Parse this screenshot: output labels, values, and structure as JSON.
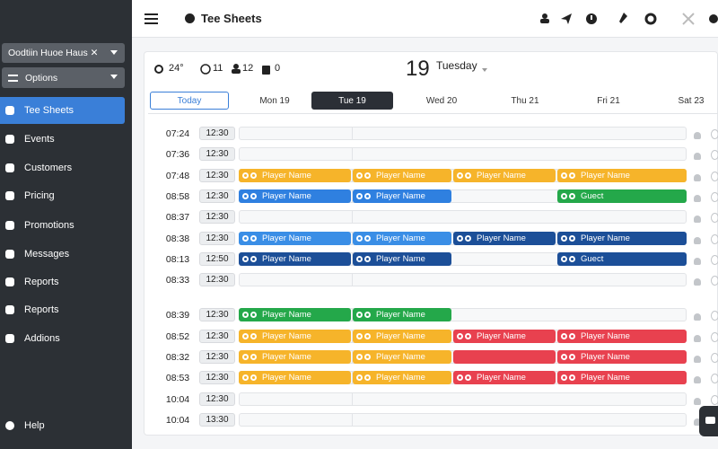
{
  "topbar": {
    "title": "Tee Sheets"
  },
  "sidebar": {
    "course": "Oodtiin Huoe Haus ✕",
    "options": "Options",
    "nav": [
      "Tee Sheets",
      "Events",
      "Customers",
      "Pricing",
      "Promotions",
      "Messages",
      "Reports",
      "Reports",
      "Addions"
    ],
    "active": 0,
    "help": "Help"
  },
  "header": {
    "temperature": "24°",
    "stat_a": 11,
    "stat_b": 12,
    "stat_c": 0,
    "day_number": 19,
    "weekday": "Tuesday"
  },
  "tabs": {
    "items": [
      "Today",
      "Mon 19",
      "Tue 19",
      "Wed 20",
      "Thu 21",
      "Fri 21",
      "Sat 23"
    ],
    "selected": 2
  },
  "rows": [
    {
      "time": "07:24",
      "tee": "12:30",
      "slots": [
        null,
        null,
        null,
        null
      ]
    },
    {
      "time": "07:36",
      "tee": "12:30",
      "slots": [
        null,
        null,
        null,
        null
      ]
    },
    {
      "time": "07:48",
      "tee": "12:30",
      "slots": [
        {
          "label": "Player Name",
          "color": "#f6b42a"
        },
        {
          "label": "Player Name",
          "color": "#f6b42a"
        },
        {
          "label": "Player Name",
          "color": "#f6b42a"
        },
        {
          "label": "Player Name",
          "color": "#f6b42a"
        }
      ]
    },
    {
      "time": "08:58",
      "tee": "12:30",
      "slots": [
        {
          "label": "Player Name",
          "color": "#2f80e0"
        },
        {
          "label": "Player Name",
          "color": "#2f80e0"
        },
        null,
        {
          "label": "Guect",
          "color": "#24a84a"
        }
      ]
    },
    {
      "time": "08:37",
      "tee": "12:30",
      "slots": [
        null,
        null,
        null,
        null
      ]
    },
    {
      "time": "08:38",
      "tee": "12:30",
      "slots": [
        {
          "label": "Player Name",
          "color": "#3a8ee6"
        },
        {
          "label": "Player Name",
          "color": "#3a8ee6"
        },
        {
          "label": "Player Name",
          "color": "#1c4f98"
        },
        {
          "label": "Player Name",
          "color": "#1c4f98"
        }
      ]
    },
    {
      "time": "08:13",
      "tee": "12:50",
      "slots": [
        {
          "label": "Player Name",
          "color": "#1c4f98"
        },
        {
          "label": "Player Name",
          "color": "#1c4f98"
        },
        null,
        {
          "label": "Guect",
          "color": "#1c4f98"
        }
      ]
    },
    {
      "time": "08:33",
      "tee": "12:30",
      "slots": [
        null,
        null,
        null,
        null
      ]
    },
    {
      "time": "08:39",
      "tee": "12:30",
      "slots": [
        {
          "label": "Player Name",
          "color": "#24a84a"
        },
        {
          "label": "Player Name",
          "color": "#24a84a"
        },
        null,
        null
      ]
    },
    {
      "time": "08:52",
      "tee": "12:30",
      "slots": [
        {
          "label": "Player Name",
          "color": "#f6b42a"
        },
        {
          "label": "Player Name",
          "color": "#f6b42a"
        },
        {
          "label": "Player Name",
          "color": "#e8414f"
        },
        {
          "label": "Player Name",
          "color": "#e8414f"
        }
      ]
    },
    {
      "time": "08:32",
      "tee": "12:30",
      "slots": [
        {
          "label": "Player Name",
          "color": "#f6b42a"
        },
        {
          "label": "Player Name",
          "color": "#f6b42a"
        },
        {
          "color": "#e8414f"
        },
        {
          "label": "Player Name",
          "color": "#e8414f"
        }
      ]
    },
    {
      "time": "08:53",
      "tee": "12:30",
      "slots": [
        {
          "label": "Player Name",
          "color": "#f6b42a"
        },
        {
          "label": "Player Name",
          "color": "#f6b42a"
        },
        {
          "label": "Player Name",
          "color": "#e8414f"
        },
        {
          "label": "Player Name",
          "color": "#e8414f"
        }
      ]
    },
    {
      "time": "10:04",
      "tee": "12:30",
      "slots": [
        null,
        null,
        null,
        null
      ]
    },
    {
      "time": "10:04",
      "tee": "13:30",
      "slots": [
        null,
        null,
        null,
        null
      ]
    }
  ]
}
